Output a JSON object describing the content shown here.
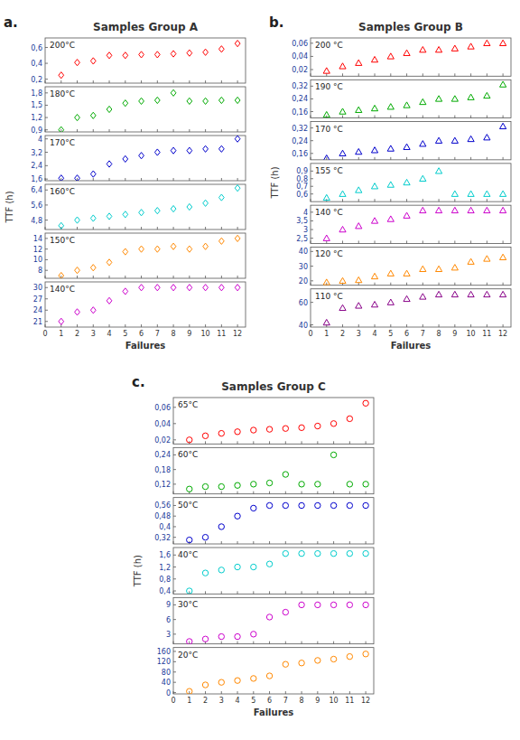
{
  "chart_data": [
    {
      "type": "scatter",
      "title": "Samples Group A",
      "annotations": [
        "a."
      ],
      "x_label": "Failures",
      "y_label": "TTF (h)",
      "x": [
        1,
        2,
        3,
        4,
        5,
        6,
        7,
        8,
        9,
        10,
        11,
        12
      ],
      "xlim": [
        0,
        12.5
      ],
      "xticks": [
        0,
        1,
        2,
        3,
        4,
        5,
        6,
        7,
        8,
        9,
        10,
        11,
        12
      ],
      "series": [
        {
          "name": "200°C",
          "color": "#FF0000",
          "marker": "diamond",
          "values": [
            0.25,
            0.41,
            0.43,
            0.5,
            0.5,
            0.51,
            0.51,
            0.52,
            0.53,
            0.54,
            0.58,
            0.65
          ],
          "ylim": [
            0.15,
            0.72
          ],
          "yticks": [
            {
              "value": 0.2,
              "label": "0,2"
            },
            {
              "value": 0.4,
              "label": "0,4"
            },
            {
              "value": 0.6,
              "label": "0,6"
            }
          ]
        },
        {
          "name": "180°C",
          "color": "#00AA00",
          "marker": "diamond",
          "values": [
            0.9,
            1.2,
            1.25,
            1.4,
            1.55,
            1.6,
            1.62,
            1.8,
            1.6,
            1.6,
            1.62,
            1.62
          ],
          "ylim": [
            0.85,
            1.95
          ],
          "yticks": [
            {
              "value": 0.9,
              "label": "0,9"
            },
            {
              "value": 1.2,
              "label": "1,2"
            },
            {
              "value": 1.5,
              "label": "1,5"
            },
            {
              "value": 1.8,
              "label": "1,8"
            }
          ]
        },
        {
          "name": "170°C",
          "color": "#0000CC",
          "marker": "diamond",
          "values": [
            1.65,
            1.65,
            1.9,
            2.5,
            2.8,
            3.0,
            3.2,
            3.3,
            3.3,
            3.4,
            3.4,
            4.0
          ],
          "ylim": [
            1.5,
            4.2
          ],
          "yticks": [
            {
              "value": 1.6,
              "label": "1,6"
            },
            {
              "value": 2.4,
              "label": "2,4"
            },
            {
              "value": 3.2,
              "label": "3,2"
            },
            4
          ]
        },
        {
          "name": "160°C",
          "color": "#00CCCC",
          "marker": "diamond",
          "values": [
            4.5,
            4.8,
            4.9,
            5.0,
            5.1,
            5.2,
            5.3,
            5.4,
            5.5,
            5.7,
            6.0,
            6.5
          ],
          "ylim": [
            4.3,
            6.7
          ],
          "yticks": [
            {
              "value": 4.8,
              "label": "4,8"
            },
            {
              "value": 5.6,
              "label": "5,6"
            },
            {
              "value": 6.4,
              "label": "6,4"
            }
          ]
        },
        {
          "name": "150°C",
          "color": "#FF8800",
          "marker": "diamond",
          "values": [
            7.0,
            8.0,
            8.5,
            9.5,
            11.5,
            12.0,
            12.0,
            12.5,
            12.0,
            12.5,
            13.5,
            14.0
          ],
          "ylim": [
            6.5,
            15.0
          ],
          "yticks": [
            8,
            10,
            12,
            14
          ]
        },
        {
          "name": "140°C",
          "color": "#CC00CC",
          "marker": "diamond",
          "values": [
            21.0,
            23.5,
            24.0,
            26.5,
            29.0,
            30.0,
            30.0,
            30.0,
            30.0,
            30.0,
            30.0,
            30.0
          ],
          "ylim": [
            19.5,
            31.5
          ],
          "yticks": [
            21,
            24,
            27,
            30
          ]
        }
      ]
    },
    {
      "type": "scatter",
      "title": "Samples Group B",
      "annotations": [
        "b."
      ],
      "x_label": "Failures",
      "y_label": "TTF (h)",
      "x": [
        1,
        2,
        3,
        4,
        5,
        6,
        7,
        8,
        9,
        10,
        11,
        12
      ],
      "xlim": [
        0,
        12.5
      ],
      "xticks": [
        0,
        1,
        2,
        3,
        4,
        5,
        6,
        7,
        8,
        9,
        10,
        11,
        12
      ],
      "series": [
        {
          "name": "200 °C",
          "color": "#FF0000",
          "marker": "triangle",
          "values": [
            0.018,
            0.025,
            0.03,
            0.035,
            0.04,
            0.045,
            0.05,
            0.05,
            0.052,
            0.055,
            0.06,
            0.06
          ],
          "ylim": [
            0.01,
            0.068
          ],
          "yticks": [
            {
              "value": 0.02,
              "label": "0,02"
            },
            {
              "value": 0.04,
              "label": "0,04"
            },
            {
              "value": 0.06,
              "label": "0,06"
            }
          ]
        },
        {
          "name": "190 °C",
          "color": "#00AA00",
          "marker": "triangle",
          "values": [
            0.14,
            0.16,
            0.17,
            0.18,
            0.19,
            0.2,
            0.22,
            0.24,
            0.24,
            0.25,
            0.26,
            0.33
          ],
          "ylim": [
            0.12,
            0.36
          ],
          "yticks": [
            {
              "value": 0.16,
              "label": "0,16"
            },
            {
              "value": 0.24,
              "label": "0,24"
            },
            {
              "value": 0.32,
              "label": "0,32"
            }
          ]
        },
        {
          "name": "170 °C",
          "color": "#0000CC",
          "marker": "triangle",
          "values": [
            0.13,
            0.16,
            0.17,
            0.18,
            0.19,
            0.2,
            0.22,
            0.24,
            0.24,
            0.25,
            0.26,
            0.33
          ],
          "ylim": [
            0.12,
            0.36
          ],
          "yticks": [
            {
              "value": 0.16,
              "label": "0,16"
            },
            {
              "value": 0.24,
              "label": "0,24"
            },
            {
              "value": 0.32,
              "label": "0,32"
            }
          ]
        },
        {
          "name": "155 °C",
          "color": "#00CCCC",
          "marker": "triangle",
          "values": [
            0.55,
            0.6,
            0.65,
            0.7,
            0.72,
            0.75,
            0.8,
            0.9,
            0.6,
            0.6,
            0.6,
            0.6
          ],
          "ylim": [
            0.5,
            1.0
          ],
          "yticks": [
            {
              "value": 0.6,
              "label": "0,6"
            },
            {
              "value": 0.7,
              "label": "0,7"
            },
            {
              "value": 0.8,
              "label": "0,8"
            },
            {
              "value": 0.9,
              "label": "0,9"
            }
          ]
        },
        {
          "name": "140 °C",
          "color": "#CC00CC",
          "marker": "triangle",
          "values": [
            2.5,
            3.0,
            3.2,
            3.5,
            3.6,
            3.8,
            4.1,
            4.1,
            4.1,
            4.1,
            4.1,
            4.1
          ],
          "ylim": [
            2.2,
            4.4
          ],
          "yticks": [
            {
              "value": 2.5,
              "label": "2,5"
            },
            3,
            {
              "value": 3.5,
              "label": "3,5"
            },
            4
          ]
        },
        {
          "name": "120 °C",
          "color": "#FF8800",
          "marker": "triangle",
          "values": [
            19.0,
            20.0,
            20.5,
            23.0,
            25.0,
            25.0,
            28.0,
            28.0,
            29.0,
            33.0,
            35.0,
            36.0
          ],
          "ylim": [
            17.0,
            43.0
          ],
          "yticks": [
            20,
            30,
            40
          ]
        },
        {
          "name": "110 °C",
          "color": "#880088",
          "marker": "triangle",
          "values": [
            42.0,
            55.0,
            57.0,
            58.0,
            60.0,
            63.0,
            65.0,
            67.0,
            67.0,
            67.0,
            67.0,
            67.0
          ],
          "ylim": [
            38.0,
            72.0
          ],
          "yticks": [
            40,
            60
          ]
        }
      ]
    },
    {
      "type": "scatter",
      "title": "Samples Group C",
      "annotations": [
        "c."
      ],
      "x_label": "Failures",
      "y_label": "TTF (h)",
      "x": [
        1,
        2,
        3,
        4,
        5,
        6,
        7,
        8,
        9,
        10,
        11,
        12
      ],
      "xlim": [
        0,
        12.5
      ],
      "xticks": [
        0,
        1,
        2,
        3,
        4,
        5,
        6,
        7,
        8,
        9,
        10,
        11,
        12
      ],
      "series": [
        {
          "name": "65°C",
          "color": "#FF0000",
          "marker": "circle",
          "values": [
            0.02,
            0.025,
            0.028,
            0.03,
            0.032,
            0.033,
            0.034,
            0.035,
            0.037,
            0.04,
            0.046,
            0.065
          ],
          "ylim": [
            0.015,
            0.072
          ],
          "yticks": [
            {
              "value": 0.02,
              "label": "0,02"
            },
            {
              "value": 0.04,
              "label": "0,04"
            },
            {
              "value": 0.06,
              "label": "0,06"
            }
          ]
        },
        {
          "name": "60°C",
          "color": "#00AA00",
          "marker": "circle",
          "values": [
            0.1,
            0.11,
            0.11,
            0.115,
            0.12,
            0.125,
            0.16,
            0.12,
            0.12,
            0.24,
            0.12,
            0.12
          ],
          "ylim": [
            0.08,
            0.27
          ],
          "yticks": [
            {
              "value": 0.12,
              "label": "0,12"
            },
            {
              "value": 0.18,
              "label": "0,18"
            },
            {
              "value": 0.24,
              "label": "0,24"
            }
          ]
        },
        {
          "name": "50°C",
          "color": "#0000CC",
          "marker": "circle",
          "values": [
            0.3,
            0.32,
            0.4,
            0.48,
            0.54,
            0.56,
            0.56,
            0.56,
            0.56,
            0.56,
            0.56,
            0.56
          ],
          "ylim": [
            0.27,
            0.62
          ],
          "yticks": [
            {
              "value": 0.32,
              "label": "0,32"
            },
            {
              "value": 0.4,
              "label": "0,4"
            },
            {
              "value": 0.48,
              "label": "0,48"
            },
            {
              "value": 0.56,
              "label": "0,56"
            }
          ]
        },
        {
          "name": "40°C",
          "color": "#00CCCC",
          "marker": "circle",
          "values": [
            0.4,
            1.0,
            1.1,
            1.2,
            1.2,
            1.3,
            1.65,
            1.65,
            1.65,
            1.65,
            1.65,
            1.65
          ],
          "ylim": [
            0.3,
            1.85
          ],
          "yticks": [
            {
              "value": 0.4,
              "label": "0,4"
            },
            {
              "value": 0.8,
              "label": "0,8"
            },
            {
              "value": 1.2,
              "label": "1,2"
            },
            {
              "value": 1.6,
              "label": "1,6"
            }
          ]
        },
        {
          "name": "30°C",
          "color": "#CC00CC",
          "marker": "circle",
          "values": [
            1.5,
            2.0,
            2.5,
            2.5,
            3.0,
            6.5,
            7.5,
            9.0,
            9.0,
            9.0,
            9.0,
            9.0
          ],
          "ylim": [
            1.0,
            10.5
          ],
          "yticks": [
            3,
            6,
            9
          ]
        },
        {
          "name": "20°C",
          "color": "#FF8800",
          "marker": "circle",
          "values": [
            5.0,
            30.0,
            40.0,
            47.0,
            55.0,
            65.0,
            110.0,
            115.0,
            125.0,
            130.0,
            140.0,
            150.0
          ],
          "ylim": [
            -5.0,
            175.0
          ],
          "yticks": [
            0,
            40,
            80,
            120,
            160
          ]
        }
      ]
    }
  ]
}
